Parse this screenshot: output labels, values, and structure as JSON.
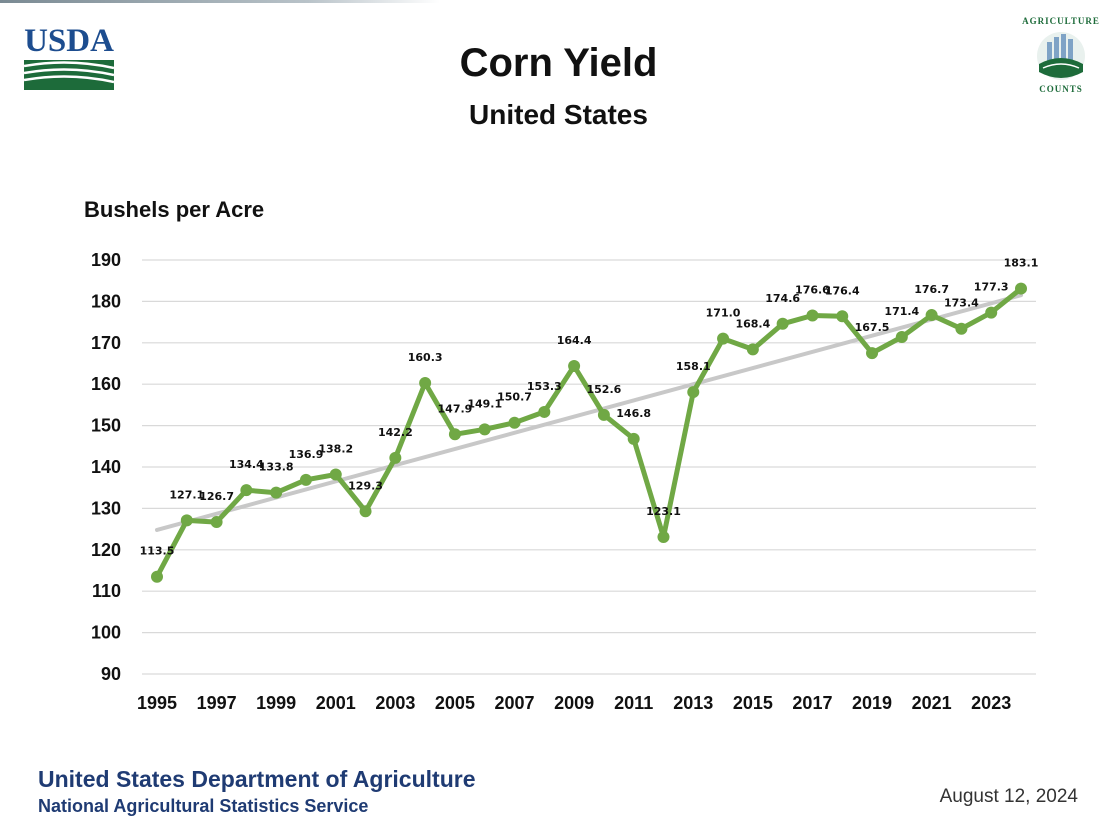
{
  "header": {
    "usda_logo_text": "USDA",
    "ag_logo_top": "AGRICULTURE",
    "ag_logo_bottom": "COUNTS"
  },
  "chart_data": {
    "type": "line",
    "title": "Corn Yield",
    "subtitle": "United States",
    "ylabel": "Bushels per Acre",
    "xlabel": "",
    "ylim": [
      90,
      190
    ],
    "y_ticks": [
      "190",
      "180",
      "170",
      "160",
      "150",
      "140",
      "130",
      "120",
      "110",
      "100",
      "90"
    ],
    "y_tick_values": [
      190,
      180,
      170,
      160,
      150,
      140,
      130,
      120,
      110,
      100,
      90
    ],
    "x_tick_labels": [
      "1995",
      "1997",
      "1999",
      "2001",
      "2003",
      "2005",
      "2007",
      "2009",
      "2011",
      "2013",
      "2015",
      "2017",
      "2019",
      "2021",
      "2023"
    ],
    "x": [
      1995,
      1996,
      1997,
      1998,
      1999,
      2000,
      2001,
      2002,
      2003,
      2004,
      2005,
      2006,
      2007,
      2008,
      2009,
      2010,
      2011,
      2012,
      2013,
      2014,
      2015,
      2016,
      2017,
      2018,
      2019,
      2020,
      2021,
      2022,
      2023,
      2024
    ],
    "series": [
      {
        "name": "Corn Yield",
        "color": "#70a845",
        "values": [
          113.5,
          127.1,
          126.7,
          134.4,
          133.8,
          136.9,
          138.2,
          129.3,
          142.2,
          160.3,
          147.9,
          149.1,
          150.7,
          153.3,
          164.4,
          152.6,
          146.8,
          123.1,
          158.1,
          171.0,
          168.4,
          174.6,
          176.6,
          176.4,
          167.5,
          171.4,
          176.7,
          173.4,
          177.3,
          183.1
        ],
        "labels": [
          "113.5",
          "127.1",
          "126.7",
          "134.4",
          "133.8",
          "136.9",
          "138.2",
          "129.3",
          "142.2",
          "160.3",
          "147.9",
          "149.1",
          "150.7",
          "153.3",
          "164.4",
          "152.6",
          "146.8",
          "123.1",
          "158.1",
          "171.0",
          "168.4",
          "174.6",
          "176.6",
          "176.4",
          "167.5",
          "171.4",
          "176.7",
          "173.4",
          "177.3",
          "183.1"
        ]
      },
      {
        "name": "Trend",
        "color": "#c8c8c8",
        "x": [
          1995,
          2024
        ],
        "values": [
          124.8,
          181.5
        ]
      }
    ],
    "grid": true,
    "gridline_color": "#d9d9d9"
  },
  "footer": {
    "department": "United States Department of Agriculture",
    "service": "National Agricultural Statistics Service",
    "date": "August 12, 2024"
  }
}
